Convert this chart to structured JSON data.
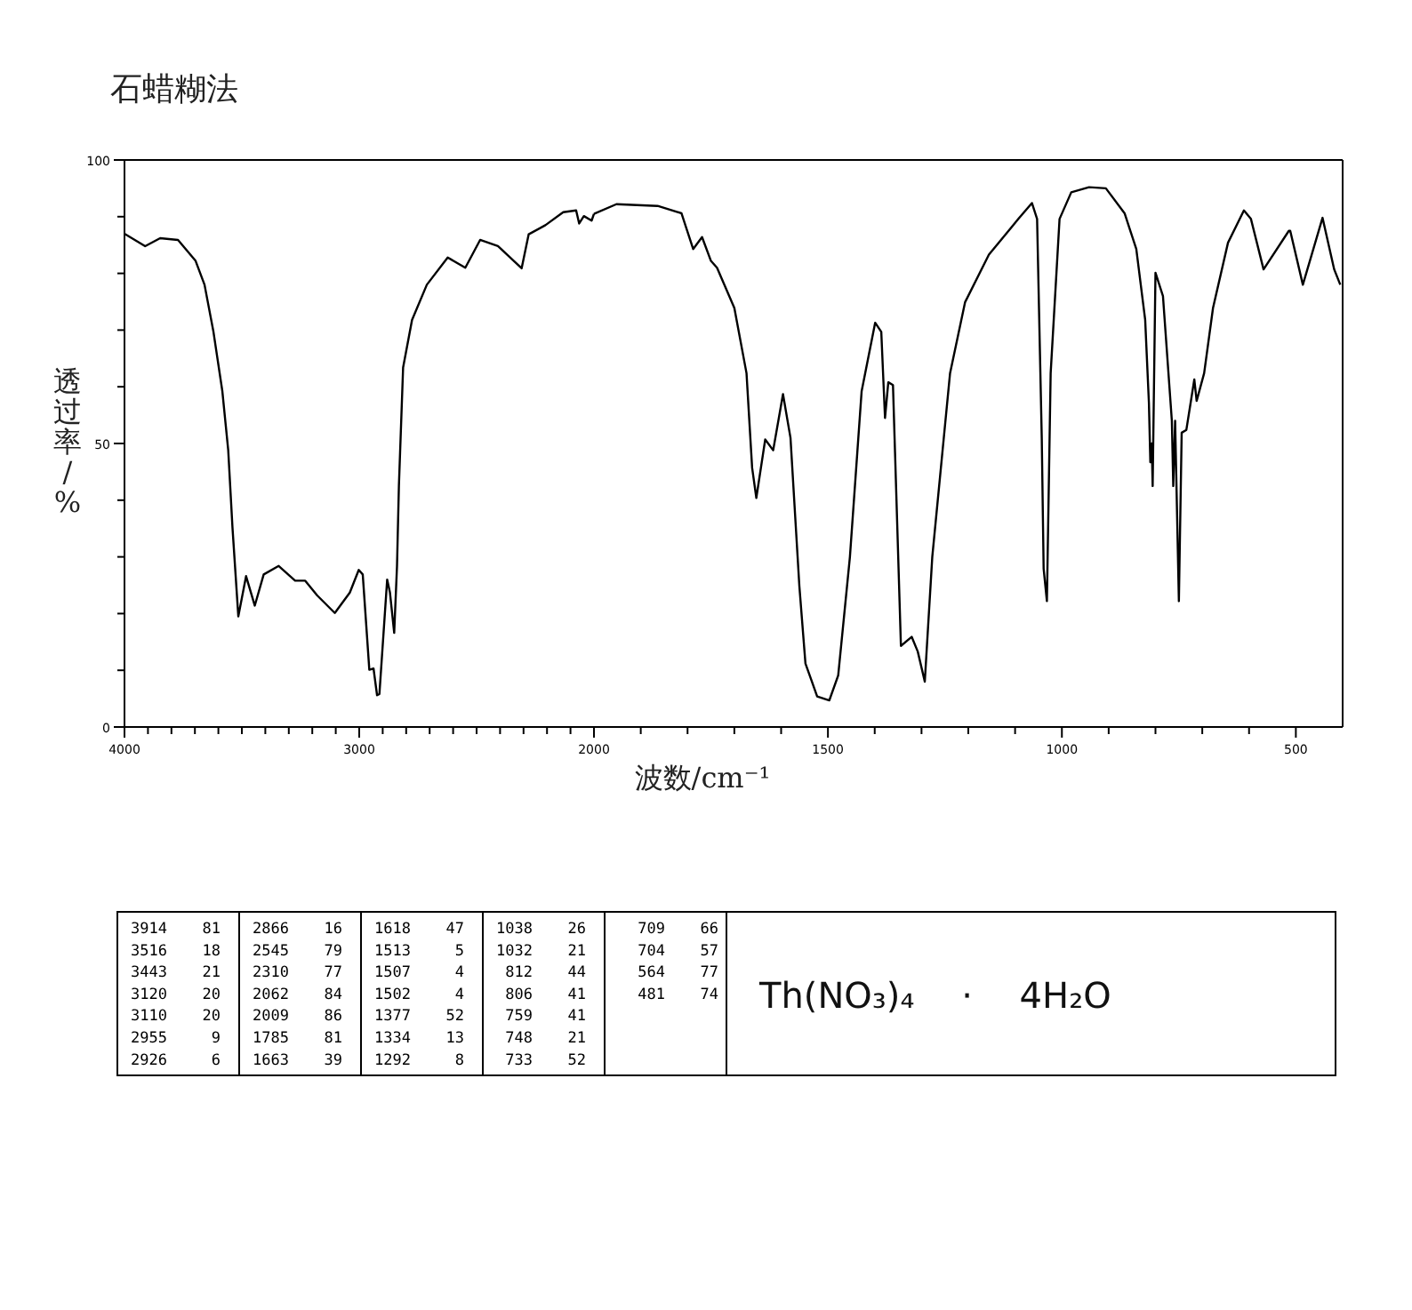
{
  "chart_data": [
    {
      "type": "line",
      "title": "石蜡糊法",
      "ylabel": "透过率/%",
      "xlim": [
        4000,
        2000
      ],
      "ylim": [
        0,
        100
      ],
      "xticks": [
        4000,
        {
          "value": 3900,
          "label": null
        },
        {
          "value": 3800,
          "label": null
        },
        {
          "value": 3700,
          "label": null
        },
        {
          "value": 3600,
          "label": null
        },
        {
          "value": 3500,
          "label": null
        },
        {
          "value": 3400,
          "label": null
        },
        {
          "value": 3300,
          "label": null
        },
        {
          "value": 3200,
          "label": null
        },
        {
          "value": 3100,
          "label": null
        },
        3000,
        {
          "value": 2900,
          "label": null
        },
        {
          "value": 2800,
          "label": null
        },
        {
          "value": 2700,
          "label": null
        },
        {
          "value": 2600,
          "label": null
        },
        {
          "value": 2500,
          "label": null
        },
        {
          "value": 2400,
          "label": null
        },
        {
          "value": 2300,
          "label": null
        },
        {
          "value": 2200,
          "label": null
        },
        {
          "value": 2100,
          "label": null
        }
      ],
      "yticks": [
        0,
        {
          "value": 10,
          "label": null
        },
        {
          "value": 20,
          "label": null
        },
        {
          "value": 30,
          "label": null
        },
        {
          "value": 40,
          "label": null
        },
        50,
        {
          "value": 60,
          "label": null
        },
        {
          "value": 70,
          "label": null
        },
        {
          "value": 80,
          "label": null
        },
        {
          "value": 90,
          "label": null
        },
        100
      ],
      "grid": false,
      "series": [
        {
          "color": "#000000",
          "x": [
            4000,
            3912,
            3848,
            3772,
            3697,
            3659,
            3621,
            3583,
            3558,
            3540,
            3515,
            3482,
            3445,
            3407,
            3343,
            3273,
            3230,
            3179,
            3104,
            3040,
            3002,
            2985,
            2957,
            2939,
            2924,
            2914,
            2881,
            2869,
            2851,
            2839,
            2831,
            2813,
            2775,
            2712,
            2623,
            2548,
            2485,
            2409,
            2308,
            2278,
            2207,
            2131,
            2076,
            2063,
            2043,
            2010,
            2000
          ],
          "values": [
            87,
            84.8,
            86.2,
            85.9,
            82.2,
            78,
            69.7,
            59.2,
            48.8,
            35.2,
            19.5,
            26.6,
            21.4,
            26.9,
            28.4,
            25.8,
            25.8,
            23.2,
            20.1,
            23.7,
            27.7,
            26.9,
            10.1,
            10.3,
            5.6,
            5.8,
            26,
            23.7,
            16.6,
            28.4,
            42.5,
            63.4,
            71.8,
            78,
            82.8,
            81,
            85.9,
            84.8,
            80.9,
            86.9,
            88.5,
            90.8,
            91.1,
            88.8,
            90.1,
            89.3,
            90.5
          ]
        }
      ]
    },
    {
      "type": "line",
      "xlabel": "波数/cm⁻¹",
      "xlim": [
        2000,
        400
      ],
      "ylim": [
        0,
        100
      ],
      "tick_labels": "x",
      "xticks": [
        2000,
        {
          "value": 1900,
          "label": null
        },
        {
          "value": 1800,
          "label": null
        },
        {
          "value": 1700,
          "label": null
        },
        {
          "value": 1600,
          "label": null
        },
        1500,
        {
          "value": 1400,
          "label": null
        },
        {
          "value": 1300,
          "label": null
        },
        {
          "value": 1200,
          "label": null
        },
        {
          "value": 1100,
          "label": null
        },
        1000,
        {
          "value": 900,
          "label": null
        },
        {
          "value": 800,
          "label": null
        },
        {
          "value": 700,
          "label": null
        },
        {
          "value": 600,
          "label": null
        },
        500
      ],
      "grid": false,
      "series": [
        {
          "color": "#000000",
          "x": [
            2000,
            1952,
            1864,
            1813,
            1788,
            1769,
            1750,
            1737,
            1700,
            1674,
            1662,
            1653,
            1634,
            1617,
            1596,
            1580,
            1561,
            1548,
            1523,
            1497,
            1478,
            1453,
            1428,
            1399,
            1386,
            1378,
            1371,
            1361,
            1344,
            1321,
            1308,
            1293,
            1277,
            1239,
            1207,
            1156,
            1093,
            1064,
            1053,
            1043,
            1039,
            1032,
            1024,
            1005,
            980,
            942,
            906,
            866,
            841,
            822,
            814,
            811,
            808,
            806,
            800,
            784,
            765,
            762,
            758,
            750,
            744,
            734,
            725,
            717,
            712,
            696,
            677,
            645,
            611,
            596,
            569,
            515,
            512,
            485,
            443,
            418,
            405
          ],
          "values": [
            90.5,
            92.2,
            91.9,
            90.6,
            84.3,
            86.4,
            82.2,
            81,
            73.9,
            62.4,
            45.7,
            40.4,
            50.7,
            48.8,
            58.7,
            51,
            24.8,
            11.2,
            5.4,
            4.7,
            9.1,
            30,
            59.2,
            71.3,
            69.7,
            54.5,
            60.8,
            60.3,
            14.3,
            15.9,
            13.3,
            8,
            30,
            62.4,
            74.9,
            83.3,
            89.6,
            92.4,
            89.6,
            50.9,
            27.9,
            22.2,
            62.4,
            89.6,
            94.3,
            95.2,
            95,
            90.6,
            84.3,
            71.8,
            57.1,
            46.7,
            50,
            42.5,
            80.1,
            76,
            54,
            42.5,
            54,
            22.2,
            51.9,
            52.4,
            57.1,
            61.3,
            57.5,
            62.4,
            73.9,
            85.4,
            91.1,
            89.6,
            80.7,
            87.5,
            87.5,
            78,
            89.8,
            80.7,
            78
          ]
        }
      ],
      "annotations": [
        "3914 81",
        "3516 18",
        "3443 21",
        "3120 20",
        "3110 20",
        "2955 9",
        "2926 6",
        "2866 16",
        "2545 79",
        "2310 77",
        "2062 84",
        "2009 86",
        "1785 81",
        "1663 39",
        "1618 47",
        "1513 5",
        "1507 4",
        "1502 4",
        "1377 52",
        "1334 13",
        "1292 8",
        "1038 26",
        "1032 21",
        "812 44",
        "806 41",
        "759 41",
        "748 21",
        "733 52",
        "709 66",
        "704 57",
        "564 77",
        "481 74",
        "Th(NO₃)₄ · 4H₂O"
      ]
    }
  ]
}
